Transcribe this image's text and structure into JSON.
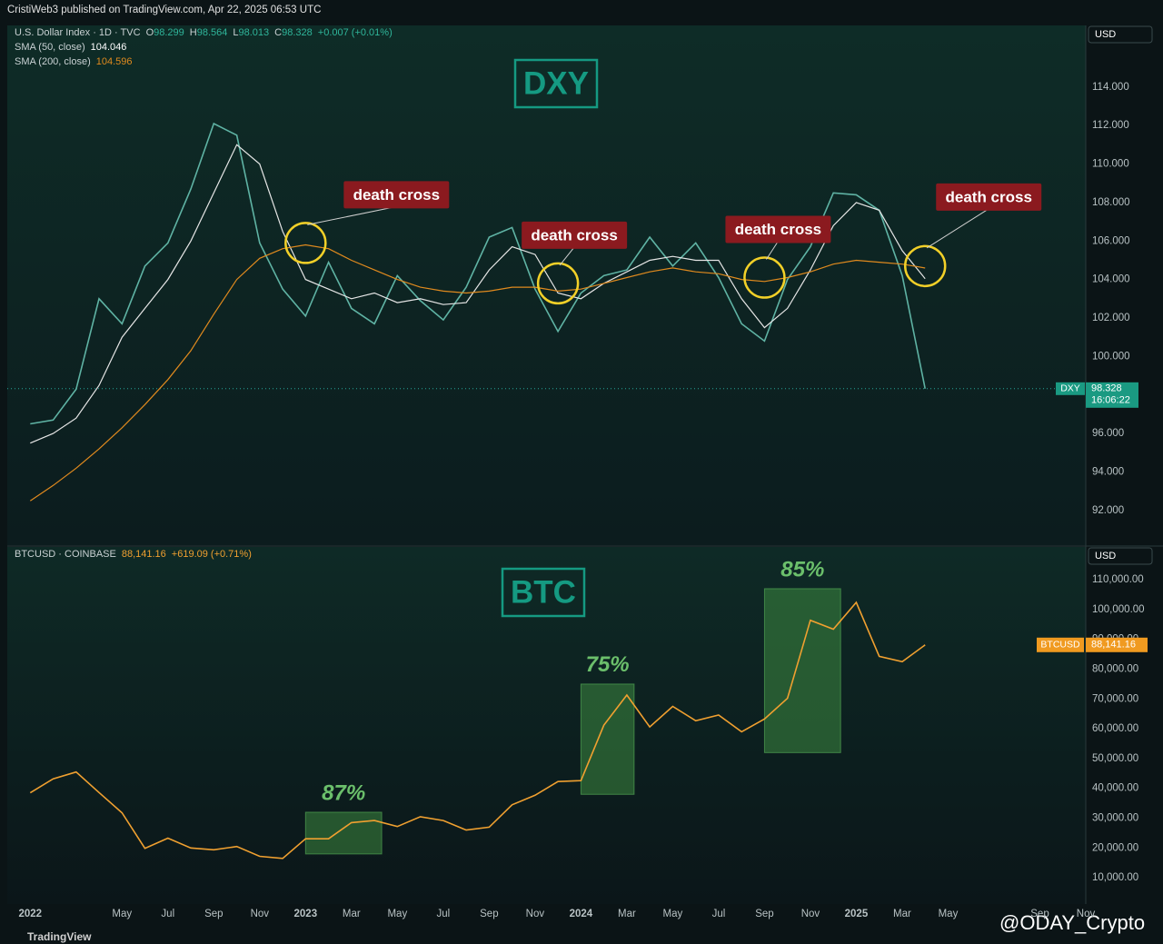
{
  "header": {
    "publisher": "CristiWeb3 published on TradingView.com, Apr 22, 2025 06:53 UTC"
  },
  "footer": {
    "brand": "TradingView",
    "watermark": "@ODAY_Crypto"
  },
  "chart_data": [
    {
      "type": "line",
      "title": "DXY",
      "currency": "USD",
      "price_tag": "DXY",
      "last_time": "16:06:22",
      "ohlc": [
        {
          "label": "O",
          "value": 98.299
        },
        {
          "label": "H",
          "value": 98.564
        },
        {
          "label": "L",
          "value": 98.013
        },
        {
          "label": "C",
          "value": 98.328
        }
      ],
      "change": "+0.007 (+0.01%)",
      "last_price": 98.328,
      "x": [
        "2022-01",
        "2022-02",
        "2022-03",
        "2022-04",
        "2022-05",
        "2022-06",
        "2022-07",
        "2022-08",
        "2022-09",
        "2022-10",
        "2022-11",
        "2022-12",
        "2023-01",
        "2023-02",
        "2023-03",
        "2023-04",
        "2023-05",
        "2023-06",
        "2023-07",
        "2023-08",
        "2023-09",
        "2023-10",
        "2023-11",
        "2023-12",
        "2024-01",
        "2024-02",
        "2024-03",
        "2024-04",
        "2024-05",
        "2024-06",
        "2024-07",
        "2024-08",
        "2024-09",
        "2024-10",
        "2024-11",
        "2024-12",
        "2025-01",
        "2025-02",
        "2025-03",
        "2025-04"
      ],
      "series": [
        {
          "name": "U.S. Dollar Index · 1D · TVC",
          "color": "#5fb3a4",
          "values": [
            96.5,
            96.7,
            98.3,
            103.0,
            101.7,
            104.7,
            105.9,
            108.7,
            112.1,
            111.5,
            105.9,
            103.5,
            102.1,
            104.9,
            102.5,
            101.7,
            104.2,
            102.9,
            101.9,
            103.6,
            106.2,
            106.7,
            103.5,
            101.3,
            103.3,
            104.2,
            104.5,
            106.2,
            104.7,
            105.9,
            104.1,
            101.7,
            100.8,
            104.0,
            105.7,
            108.5,
            108.4,
            107.6,
            104.2,
            98.328
          ]
        },
        {
          "name": "SMA (50, close)",
          "color": "#e6e6e6",
          "last": 104.046,
          "values": [
            95.5,
            96.0,
            96.8,
            98.5,
            101,
            102.5,
            104,
            106,
            108.5,
            111,
            110,
            106.5,
            104,
            103.5,
            103,
            103.3,
            102.8,
            103,
            102.7,
            102.8,
            104.5,
            105.7,
            105.3,
            103.3,
            103,
            103.8,
            104.4,
            105,
            105.2,
            105,
            105,
            103,
            101.5,
            102.5,
            104.5,
            106.8,
            108,
            107.6,
            105.5,
            104.046
          ]
        },
        {
          "name": "SMA (200, close)",
          "color": "#e08a1e",
          "last": 104.596,
          "values": [
            92.5,
            93.3,
            94.2,
            95.2,
            96.3,
            97.5,
            98.8,
            100.3,
            102.2,
            104,
            105.1,
            105.6,
            105.8,
            105.6,
            105.0,
            104.5,
            104,
            103.6,
            103.4,
            103.3,
            103.4,
            103.6,
            103.6,
            103.4,
            103.5,
            103.8,
            104.1,
            104.4,
            104.6,
            104.4,
            104.3,
            104.0,
            103.9,
            104.1,
            104.4,
            104.8,
            105.0,
            104.9,
            104.8,
            104.596
          ]
        }
      ],
      "annotations": [
        {
          "label": "death cross",
          "x": "2023-01",
          "y": 105.9
        },
        {
          "label": "death cross",
          "x": "2023-12",
          "y": 103.8
        },
        {
          "label": "death cross",
          "x": "2024-09",
          "y": 104.1
        },
        {
          "label": "death cross",
          "x": "2025-04",
          "y": 104.7
        }
      ],
      "xlim": [
        "2021-12",
        "2025-11"
      ],
      "ylim": [
        90.2,
        117.2
      ],
      "yticks": [
        {
          "value": 92,
          "label": "92.000"
        },
        {
          "value": 94,
          "label": "94.000"
        },
        {
          "value": 96,
          "label": "96.000"
        },
        {
          "value": 100,
          "label": "100.000"
        },
        {
          "value": 102,
          "label": "102.000"
        },
        {
          "value": 104,
          "label": "104.000"
        },
        {
          "value": 106,
          "label": "106.000"
        },
        {
          "value": 108,
          "label": "108.000"
        },
        {
          "value": 110,
          "label": "110.000"
        },
        {
          "value": 112,
          "label": "112.000"
        },
        {
          "value": 114,
          "label": "114.000"
        }
      ],
      "grid": false
    },
    {
      "type": "line",
      "title": "BTC",
      "currency": "USD",
      "price_tag": "BTCUSD",
      "last_price": {
        "value": 88141.16,
        "label": "88,141.16"
      },
      "change": "+619.09 (+0.71%)",
      "x": [
        "2022-01",
        "2022-02",
        "2022-03",
        "2022-04",
        "2022-05",
        "2022-06",
        "2022-07",
        "2022-08",
        "2022-09",
        "2022-10",
        "2022-11",
        "2022-12",
        "2023-01",
        "2023-02",
        "2023-03",
        "2023-04",
        "2023-05",
        "2023-06",
        "2023-07",
        "2023-08",
        "2023-09",
        "2023-10",
        "2023-11",
        "2023-12",
        "2024-01",
        "2024-02",
        "2024-03",
        "2024-04",
        "2024-05",
        "2024-06",
        "2024-07",
        "2024-08",
        "2024-09",
        "2024-10",
        "2024-11",
        "2024-12",
        "2025-01",
        "2025-02",
        "2025-03",
        "2025-04"
      ],
      "series": [
        {
          "name": "BTCUSD · COINBASE",
          "color": "#f0a030",
          "values": [
            38500,
            43200,
            45500,
            38600,
            31800,
            19900,
            23300,
            20000,
            19400,
            20500,
            17200,
            16500,
            23100,
            23100,
            28500,
            29200,
            27200,
            30500,
            29200,
            26000,
            27000,
            34500,
            37700,
            42300,
            42600,
            61200,
            71300,
            60600,
            67500,
            62700,
            64600,
            59000,
            63300,
            70200,
            96400,
            93400,
            102400,
            84300,
            82500,
            88141.16
          ]
        }
      ],
      "highlights": [
        {
          "label": "87%",
          "start": "2023-01",
          "end": "2023-04",
          "low": 18000,
          "high": 32000
        },
        {
          "label": "75%",
          "start": "2024-01",
          "end": "2024-03",
          "low": 38000,
          "high": 75000
        },
        {
          "label": "85%",
          "start": "2024-09",
          "end": "2024-12",
          "low": 52000,
          "high": 107000
        }
      ],
      "xlim": [
        "2021-12",
        "2025-11"
      ],
      "xticks": [
        {
          "value": "2022-01",
          "label": "2022"
        },
        {
          "value": "2022-05",
          "label": "May"
        },
        {
          "value": "2022-07",
          "label": "Jul"
        },
        {
          "value": "2022-09",
          "label": "Sep"
        },
        {
          "value": "2022-11",
          "label": "Nov"
        },
        {
          "value": "2023-01",
          "label": "2023"
        },
        {
          "value": "2023-03",
          "label": "Mar"
        },
        {
          "value": "2023-05",
          "label": "May"
        },
        {
          "value": "2023-07",
          "label": "Jul"
        },
        {
          "value": "2023-09",
          "label": "Sep"
        },
        {
          "value": "2023-11",
          "label": "Nov"
        },
        {
          "value": "2024-01",
          "label": "2024"
        },
        {
          "value": "2024-03",
          "label": "Mar"
        },
        {
          "value": "2024-05",
          "label": "May"
        },
        {
          "value": "2024-07",
          "label": "Jul"
        },
        {
          "value": "2024-09",
          "label": "Sep"
        },
        {
          "value": "2024-11",
          "label": "Nov"
        },
        {
          "value": "2025-01",
          "label": "2025"
        },
        {
          "value": "2025-03",
          "label": "Mar"
        },
        {
          "value": "2025-05",
          "label": "May"
        },
        {
          "value": "2025-09",
          "label": "Sep"
        },
        {
          "value": "2025-11",
          "label": "Nov"
        }
      ],
      "ylim": [
        1200,
        121000
      ],
      "yticks": [
        {
          "value": 10000,
          "label": "10,000.00"
        },
        {
          "value": 20000,
          "label": "20,000.00"
        },
        {
          "value": 30000,
          "label": "30,000.00"
        },
        {
          "value": 40000,
          "label": "40,000.00"
        },
        {
          "value": 50000,
          "label": "50,000.00"
        },
        {
          "value": 60000,
          "label": "60,000.00"
        },
        {
          "value": 70000,
          "label": "70,000.00"
        },
        {
          "value": 80000,
          "label": "80,000.00"
        },
        {
          "value": 90000,
          "label": "90,000.00"
        },
        {
          "value": 100000,
          "label": "100,000.00"
        },
        {
          "value": 110000,
          "label": "110,000.00"
        }
      ],
      "grid": false
    }
  ]
}
